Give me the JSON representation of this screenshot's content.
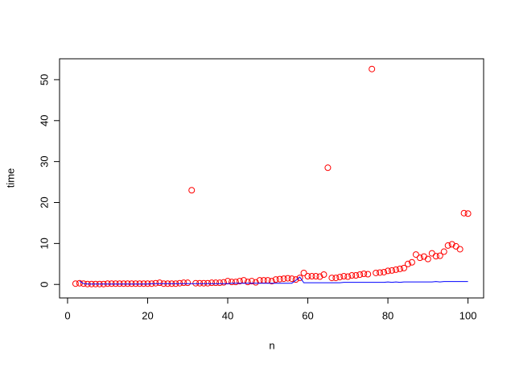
{
  "chart_data": {
    "type": "scatter",
    "xlabel": "n",
    "ylabel": "time",
    "xlim": [
      -2,
      103.9
    ],
    "ylim": [
      -3.3,
      55.1
    ],
    "xticks": [
      0,
      20,
      40,
      60,
      80,
      100
    ],
    "yticks": [
      0,
      10,
      20,
      30,
      40,
      50
    ],
    "series": [
      {
        "type": "scatter",
        "color": "#ff0000",
        "x": [
          2,
          3,
          4,
          5,
          6,
          7,
          8,
          9,
          10,
          11,
          12,
          13,
          14,
          15,
          16,
          17,
          18,
          19,
          20,
          21,
          22,
          23,
          24,
          25,
          26,
          27,
          28,
          29,
          30,
          31,
          32,
          33,
          34,
          35,
          36,
          37,
          38,
          39,
          40,
          41,
          42,
          43,
          44,
          45,
          46,
          47,
          48,
          49,
          50,
          51,
          52,
          53,
          54,
          55,
          56,
          57,
          58,
          59,
          60,
          61,
          62,
          63,
          64,
          65,
          66,
          67,
          68,
          69,
          70,
          71,
          72,
          73,
          74,
          75,
          76,
          77,
          78,
          79,
          80,
          81,
          82,
          83,
          84,
          85,
          86,
          87,
          88,
          89,
          90,
          91,
          92,
          93,
          94,
          95,
          96,
          97,
          98,
          99,
          100
        ],
        "values": [
          0.2,
          0.3,
          0.2,
          0.1,
          0.1,
          0.1,
          0.1,
          0.1,
          0.2,
          0.2,
          0.2,
          0.2,
          0.2,
          0.2,
          0.2,
          0.2,
          0.2,
          0.2,
          0.2,
          0.2,
          0.3,
          0.4,
          0.2,
          0.2,
          0.2,
          0.2,
          0.3,
          0.4,
          0.4,
          23,
          0.3,
          0.3,
          0.3,
          0.3,
          0.4,
          0.4,
          0.4,
          0.5,
          0.8,
          0.6,
          0.6,
          0.8,
          1.0,
          0.6,
          0.8,
          0.5,
          1.0,
          1.0,
          1.0,
          0.8,
          1.2,
          1.3,
          1.4,
          1.5,
          1.4,
          1.2,
          1.6,
          2.8,
          2.0,
          2.0,
          2.0,
          1.9,
          2.4,
          28.5,
          1.6,
          1.6,
          1.8,
          2.0,
          1.9,
          2.2,
          2.2,
          2.4,
          2.6,
          2.5,
          52.6,
          2.8,
          2.9,
          3.0,
          3.3,
          3.4,
          3.6,
          3.8,
          4.0,
          5.0,
          5.4,
          7.3,
          6.5,
          6.8,
          6.2,
          7.6,
          6.9,
          7.0,
          8.0,
          9.5,
          9.8,
          9.3,
          8.6,
          17.4,
          17.3
        ]
      },
      {
        "type": "line",
        "color": "#0000ff",
        "x": [
          3,
          4,
          5,
          6,
          7,
          8,
          9,
          10,
          11,
          12,
          13,
          14,
          15,
          16,
          17,
          18,
          19,
          20,
          21,
          22,
          23,
          24,
          25,
          26,
          27,
          28,
          29,
          30,
          31,
          32,
          33,
          34,
          35,
          36,
          37,
          38,
          39,
          40,
          41,
          42,
          43,
          44,
          45,
          46,
          47,
          48,
          49,
          50,
          51,
          52,
          53,
          54,
          55,
          56,
          57,
          58,
          59,
          60,
          61,
          62,
          63,
          64,
          65,
          66,
          67,
          68,
          69,
          70,
          71,
          72,
          73,
          74,
          75,
          76,
          77,
          78,
          79,
          80,
          81,
          82,
          83,
          84,
          85,
          86,
          87,
          88,
          89,
          90,
          91,
          92,
          93,
          94,
          95,
          96,
          97,
          98,
          99,
          100
        ],
        "values": [
          0.8,
          0.2,
          0.1,
          0.1,
          0.1,
          0.1,
          0.1,
          0.1,
          0.1,
          0.1,
          0.1,
          0.1,
          0.1,
          0.1,
          0.1,
          0.1,
          0.1,
          0.1,
          0.2,
          0.2,
          0.2,
          0.2,
          0.2,
          0.2,
          0.2,
          0.2,
          0.2,
          0.2,
          0.2,
          0.2,
          0.2,
          0.2,
          0.2,
          0.2,
          0.2,
          0.2,
          0.2,
          0.2,
          0.3,
          0.3,
          0.3,
          0.3,
          0.3,
          0.3,
          0.3,
          0.3,
          0.3,
          0.3,
          0.3,
          0.3,
          0.3,
          0.3,
          0.3,
          0.3,
          1.0,
          1.8,
          0.4,
          0.4,
          0.4,
          0.4,
          0.4,
          0.4,
          0.4,
          0.4,
          0.4,
          0.4,
          0.5,
          0.5,
          0.5,
          0.5,
          0.5,
          0.5,
          0.5,
          0.5,
          0.5,
          0.5,
          0.5,
          0.6,
          0.5,
          0.6,
          0.5,
          0.6,
          0.6,
          0.6,
          0.6,
          0.6,
          0.6,
          0.6,
          0.6,
          0.7,
          0.6,
          0.7,
          0.7,
          0.7,
          0.7,
          0.7,
          0.7,
          0.7
        ]
      }
    ]
  }
}
